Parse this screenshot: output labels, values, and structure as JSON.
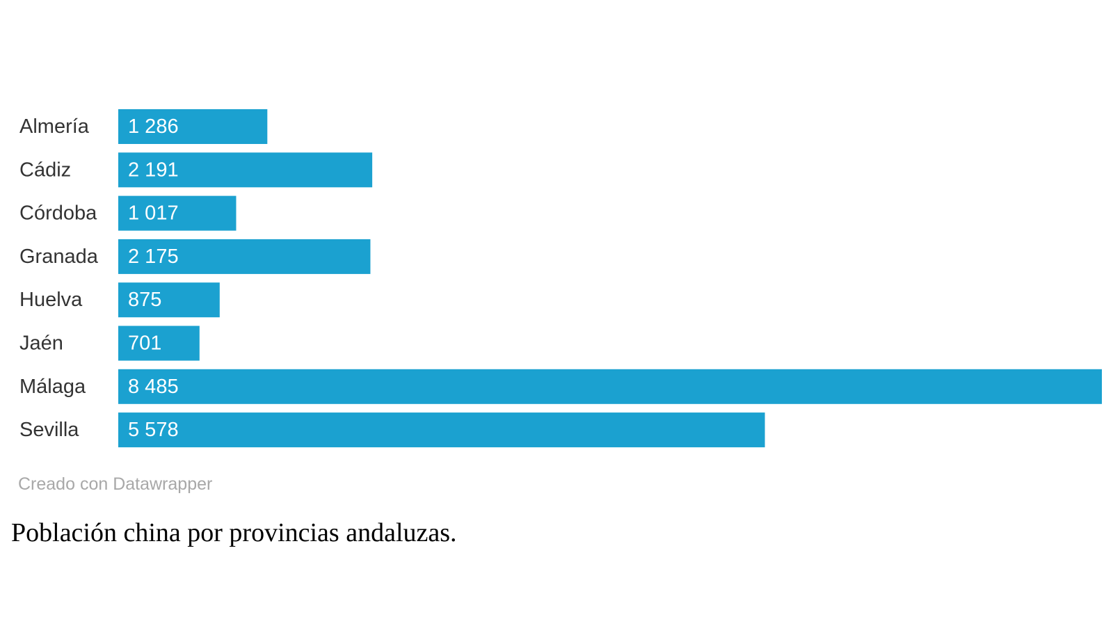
{
  "chart_data": {
    "type": "bar",
    "orientation": "horizontal",
    "categories": [
      "Almería",
      "Cádiz",
      "Córdoba",
      "Granada",
      "Huelva",
      "Jaén",
      "Málaga",
      "Sevilla"
    ],
    "values": [
      1286,
      2191,
      1017,
      2175,
      875,
      701,
      8485,
      5578
    ],
    "value_labels": [
      "1 286",
      "2 191",
      "1 017",
      "2 175",
      "875",
      "701",
      "8 485",
      "5 578"
    ],
    "bar_color": "#1ba1d0",
    "value_label_color": "#ffffff",
    "category_label_color": "#333333",
    "grid": false,
    "legend": "none"
  },
  "credit": "Creado con Datawrapper",
  "caption": "Población china por provincias andaluzas."
}
